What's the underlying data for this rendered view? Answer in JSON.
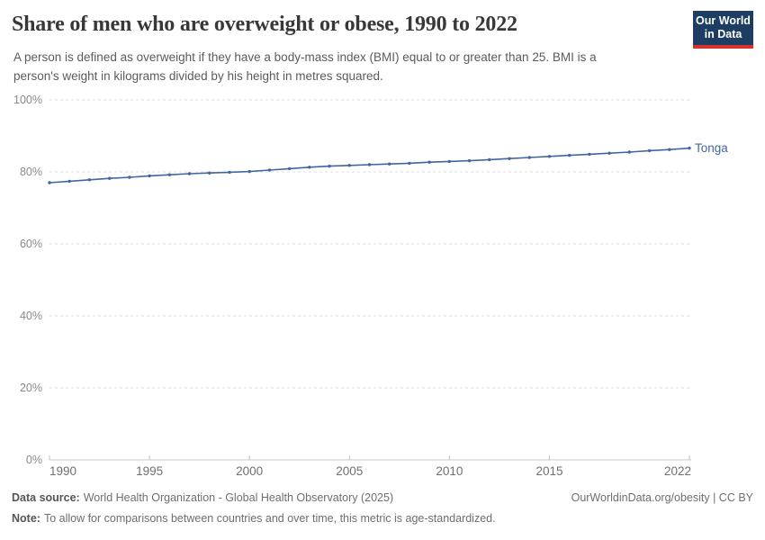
{
  "header": {
    "title": "Share of men who are overweight or obese, 1990 to 2022",
    "subtitle": "A person is defined as overweight if they have a body-mass index (BMI) equal to or greater than 25. BMI is a person's weight in kilograms divided by his height in metres squared.",
    "logo": {
      "line1": "Our World",
      "line2": "in Data",
      "bg_color": "#1d3d63",
      "bar_color": "#d5332d"
    }
  },
  "chart_data": {
    "type": "line",
    "title": "Share of men who are overweight or obese, 1990 to 2022",
    "xlabel": "",
    "ylabel": "",
    "xlim": [
      1990,
      2022
    ],
    "ylim": [
      0,
      100
    ],
    "grid": "horizontal-dashed",
    "legend": "end-of-line-label",
    "x_ticks": [
      {
        "value": 1990,
        "label": "1990"
      },
      {
        "value": 1995,
        "label": "1995"
      },
      {
        "value": 2000,
        "label": "2000"
      },
      {
        "value": 2005,
        "label": "2005"
      },
      {
        "value": 2010,
        "label": "2010"
      },
      {
        "value": 2015,
        "label": "2015"
      },
      {
        "value": 2022,
        "label": "2022"
      }
    ],
    "y_ticks": [
      {
        "value": 0,
        "label": "0%"
      },
      {
        "value": 20,
        "label": "20%"
      },
      {
        "value": 40,
        "label": "40%"
      },
      {
        "value": 60,
        "label": "60%"
      },
      {
        "value": 80,
        "label": "80%"
      },
      {
        "value": 100,
        "label": "100%"
      }
    ],
    "series": [
      {
        "name": "Tonga",
        "color": "#42669E",
        "years": [
          1990,
          1991,
          1992,
          1993,
          1994,
          1995,
          1996,
          1997,
          1998,
          1999,
          2000,
          2001,
          2002,
          2003,
          2004,
          2005,
          2006,
          2007,
          2008,
          2009,
          2010,
          2011,
          2012,
          2013,
          2014,
          2015,
          2016,
          2017,
          2018,
          2019,
          2020,
          2021,
          2022
        ],
        "values": [
          77.0,
          77.4,
          77.8,
          78.2,
          78.5,
          78.9,
          79.2,
          79.5,
          79.7,
          79.9,
          80.1,
          80.5,
          80.9,
          81.3,
          81.6,
          81.8,
          82.0,
          82.2,
          82.4,
          82.7,
          82.9,
          83.1,
          83.4,
          83.7,
          84.0,
          84.3,
          84.6,
          84.9,
          85.2,
          85.5,
          85.9,
          86.2,
          86.6
        ]
      }
    ]
  },
  "footer": {
    "datasource_label": "Data source:",
    "datasource_text": "World Health Organization - Global Health Observatory (2025)",
    "credit": "OurWorldinData.org/obesity | CC BY",
    "note_label": "Note:",
    "note_text": "To allow for comparisons between countries and over time, this metric is age-standardized."
  }
}
